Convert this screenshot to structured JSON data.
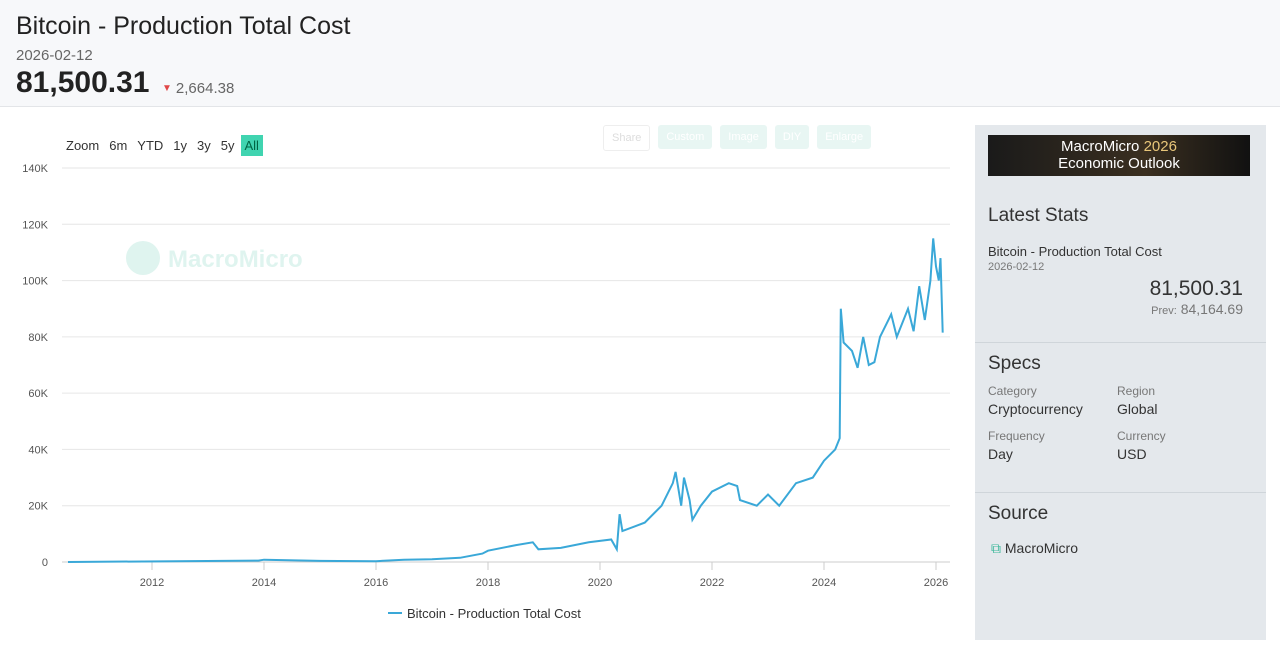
{
  "header": {
    "title": "Bitcoin - Production Total Cost",
    "date": "2026-02-12",
    "value": "81,500.31",
    "change": "2,664.38"
  },
  "zoom": {
    "label": "Zoom",
    "options": [
      "6m",
      "YTD",
      "1y",
      "3y",
      "5y",
      "All"
    ],
    "active": "All"
  },
  "toolbar": {
    "share": "Share",
    "custom": "Custom",
    "image": "Image",
    "diy": "DIY",
    "enlarge": "Enlarge"
  },
  "watermark": "MacroMicro",
  "chart_data": {
    "type": "line",
    "title": "Bitcoin - Production Total Cost",
    "xlabel": "",
    "ylabel": "",
    "ylim": [
      0,
      140000
    ],
    "xlim": [
      2010.5,
      2026.25
    ],
    "yticks": [
      "0",
      "20K",
      "40K",
      "60K",
      "80K",
      "100K",
      "120K",
      "140K"
    ],
    "xticks": [
      "2012",
      "2014",
      "2016",
      "2018",
      "2020",
      "2022",
      "2024",
      "2026"
    ],
    "legend": "bottom-center",
    "color": "#3aa8d8",
    "series": [
      {
        "name": "Bitcoin - Production Total Cost",
        "x": [
          2010.5,
          2013.9,
          2014,
          2015,
          2016,
          2016.5,
          2017,
          2017.5,
          2017.9,
          2018,
          2018.5,
          2018.8,
          2018.9,
          2019.3,
          2019.8,
          2020.2,
          2020.3,
          2020.35,
          2020.4,
          2020.8,
          2021.1,
          2021.3,
          2021.35,
          2021.45,
          2021.5,
          2021.6,
          2021.65,
          2021.8,
          2022,
          2022.3,
          2022.45,
          2022.5,
          2022.8,
          2023,
          2023.2,
          2023.5,
          2023.8,
          2024,
          2024.2,
          2024.28,
          2024.3,
          2024.35,
          2024.5,
          2024.6,
          2024.7,
          2024.8,
          2024.9,
          2025,
          2025.2,
          2025.3,
          2025.5,
          2025.6,
          2025.7,
          2025.8,
          2025.9,
          2025.95,
          2026,
          2026.05,
          2026.08,
          2026.12
        ],
        "y": [
          0,
          500,
          800,
          400,
          300,
          800,
          1000,
          1500,
          3000,
          4000,
          6000,
          7000,
          4500,
          5000,
          7000,
          8000,
          4500,
          17000,
          11000,
          14000,
          20000,
          28000,
          32000,
          20000,
          30000,
          22000,
          15000,
          20000,
          25000,
          28000,
          27000,
          22000,
          20000,
          24000,
          20000,
          28000,
          30000,
          36000,
          40000,
          44000,
          90000,
          78000,
          75000,
          69000,
          80000,
          70000,
          71000,
          80000,
          88000,
          80000,
          90000,
          82000,
          98000,
          86000,
          100000,
          115000,
          105000,
          100000,
          108000,
          81500
        ]
      }
    ]
  },
  "sidebar": {
    "banner_line1": "MacroMicro",
    "banner_year": "2026",
    "banner_line2": "Economic Outlook",
    "latest_title": "Latest Stats",
    "series_name": "Bitcoin - Production Total Cost",
    "date": "2026-02-12",
    "value": "81,500.31",
    "prev_label": "Prev:",
    "prev_value": "84,164.69",
    "specs_title": "Specs",
    "category_label": "Category",
    "category": "Cryptocurrency",
    "region_label": "Region",
    "region": "Global",
    "frequency_label": "Frequency",
    "frequency": "Day",
    "currency_label": "Currency",
    "currency": "USD",
    "source_title": "Source",
    "source": "MacroMicro"
  }
}
